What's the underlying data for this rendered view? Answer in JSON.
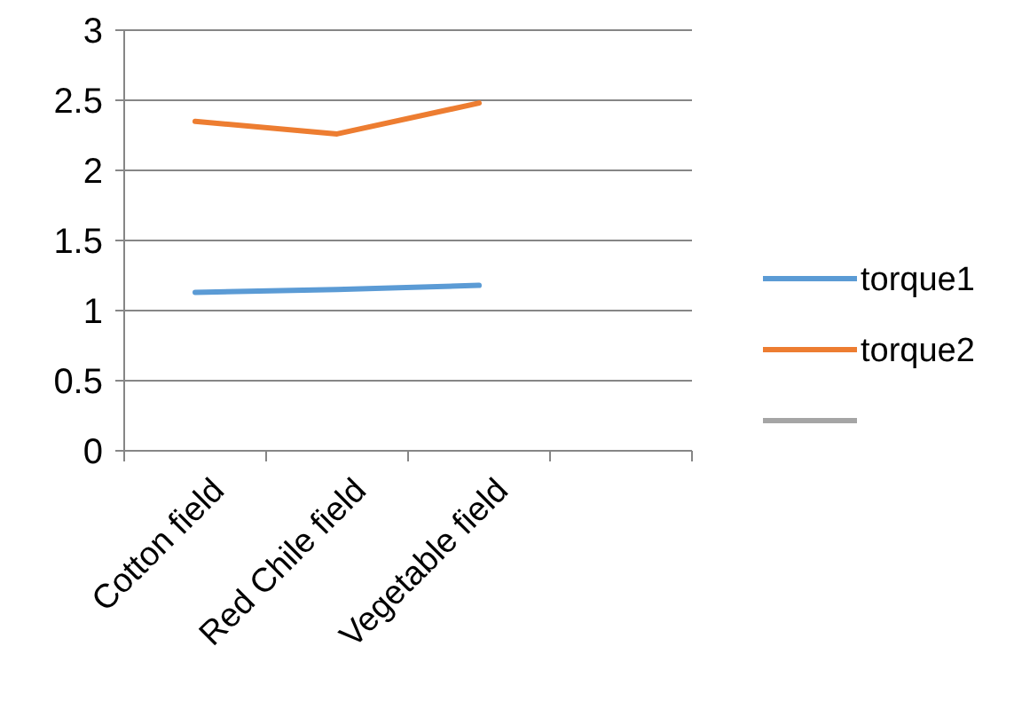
{
  "chart_data": {
    "type": "line",
    "categories": [
      "Cotton field",
      "Red Chile field",
      "Vegetable field",
      null
    ],
    "series": [
      {
        "name": "torque1",
        "color": "#5b9bd5",
        "values": [
          1.13,
          1.15,
          1.18,
          null
        ]
      },
      {
        "name": "torque2",
        "color": "#ed7d31",
        "values": [
          2.35,
          2.26,
          2.48,
          null
        ]
      },
      {
        "color": "#a5a5a5",
        "values": [
          null,
          null,
          null,
          null
        ]
      }
    ],
    "ylim": [
      0,
      3
    ],
    "yticks": [
      0,
      {
        "value": 0.5,
        "label": "0.5"
      },
      1,
      {
        "value": 1.5,
        "label": "1.5"
      },
      2,
      {
        "value": 2.5,
        "label": "2.5"
      },
      3
    ],
    "grid": "y",
    "legend": "right",
    "marker": "none",
    "line_style": "solid"
  }
}
